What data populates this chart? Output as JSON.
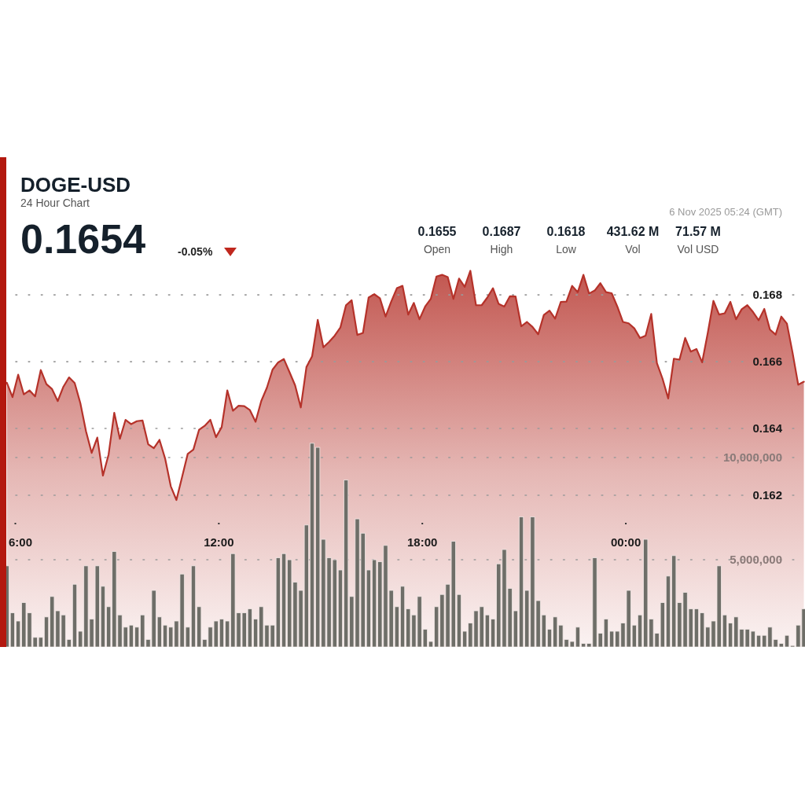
{
  "chart_data": {
    "type": "area",
    "title": "DOGE-USD",
    "subtitle": "24 Hour Chart",
    "annotations": [
      "0.1654",
      "-0.05%",
      "0.1655",
      "Open",
      "0.1687",
      "High",
      "0.1618",
      "Low",
      "431.62 M",
      "Vol",
      "71.57 M",
      "Vol USD",
      "6 Nov 2025 05:24 (GMT)"
    ],
    "x": [
      "2025-11-05T05:45",
      "2025-11-05T05:55",
      "2025-11-05T06:05",
      "2025-11-05T06:15",
      "2025-11-05T06:25",
      "2025-11-05T06:35",
      "2025-11-05T06:45",
      "2025-11-05T06:55",
      "2025-11-05T07:05",
      "2025-11-05T07:15",
      "2025-11-05T07:25",
      "2025-11-05T07:35",
      "2025-11-05T07:45",
      "2025-11-05T07:55",
      "2025-11-05T08:05",
      "2025-11-05T08:15",
      "2025-11-05T08:25",
      "2025-11-05T08:35",
      "2025-11-05T08:45",
      "2025-11-05T08:55",
      "2025-11-05T09:05",
      "2025-11-05T09:15",
      "2025-11-05T09:25",
      "2025-11-05T09:35",
      "2025-11-05T09:45",
      "2025-11-05T09:55",
      "2025-11-05T10:05",
      "2025-11-05T10:15",
      "2025-11-05T10:25",
      "2025-11-05T10:35",
      "2025-11-05T10:45",
      "2025-11-05T10:55",
      "2025-11-05T11:05",
      "2025-11-05T11:15",
      "2025-11-05T11:25",
      "2025-11-05T11:35",
      "2025-11-05T11:45",
      "2025-11-05T11:55",
      "2025-11-05T12:05",
      "2025-11-05T12:15",
      "2025-11-05T12:25",
      "2025-11-05T12:35",
      "2025-11-05T12:45",
      "2025-11-05T12:55",
      "2025-11-05T13:05",
      "2025-11-05T13:15",
      "2025-11-05T13:25",
      "2025-11-05T13:35",
      "2025-11-05T13:45",
      "2025-11-05T13:55",
      "2025-11-05T14:05",
      "2025-11-05T14:15",
      "2025-11-05T14:25",
      "2025-11-05T14:35",
      "2025-11-05T14:45",
      "2025-11-05T14:55",
      "2025-11-05T15:05",
      "2025-11-05T15:15",
      "2025-11-05T15:25",
      "2025-11-05T15:35",
      "2025-11-05T15:45",
      "2025-11-05T15:55",
      "2025-11-05T16:05",
      "2025-11-05T16:15",
      "2025-11-05T16:25",
      "2025-11-05T16:35",
      "2025-11-05T16:45",
      "2025-11-05T16:55",
      "2025-11-05T17:05",
      "2025-11-05T17:15",
      "2025-11-05T17:25",
      "2025-11-05T17:35",
      "2025-11-05T17:45",
      "2025-11-05T17:55",
      "2025-11-05T18:05",
      "2025-11-05T18:15",
      "2025-11-05T18:25",
      "2025-11-05T18:35",
      "2025-11-05T18:45",
      "2025-11-05T18:55",
      "2025-11-05T19:05",
      "2025-11-05T19:15",
      "2025-11-05T19:25",
      "2025-11-05T19:35",
      "2025-11-05T19:45",
      "2025-11-05T19:55",
      "2025-11-05T20:05",
      "2025-11-05T20:15",
      "2025-11-05T20:25",
      "2025-11-05T20:35",
      "2025-11-05T20:45",
      "2025-11-05T20:55",
      "2025-11-05T21:05",
      "2025-11-05T21:15",
      "2025-11-05T21:25",
      "2025-11-05T21:35",
      "2025-11-05T21:45",
      "2025-11-05T21:55",
      "2025-11-05T22:05",
      "2025-11-05T22:15",
      "2025-11-05T22:25",
      "2025-11-05T22:35",
      "2025-11-05T22:45",
      "2025-11-05T22:55",
      "2025-11-05T23:05",
      "2025-11-05T23:15",
      "2025-11-05T23:25",
      "2025-11-05T23:35",
      "2025-11-05T23:45",
      "2025-11-05T23:55",
      "2025-11-06T00:05",
      "2025-11-06T00:15",
      "2025-11-06T00:25",
      "2025-11-06T00:35",
      "2025-11-06T00:45",
      "2025-11-06T00:55",
      "2025-11-06T01:05",
      "2025-11-06T01:15",
      "2025-11-06T01:25",
      "2025-11-06T01:35",
      "2025-11-06T01:45",
      "2025-11-06T01:55",
      "2025-11-06T02:05",
      "2025-11-06T02:15",
      "2025-11-06T02:25",
      "2025-11-06T02:35",
      "2025-11-06T02:45",
      "2025-11-06T02:55",
      "2025-11-06T03:05",
      "2025-11-06T03:15",
      "2025-11-06T03:25",
      "2025-11-06T03:35",
      "2025-11-06T03:45",
      "2025-11-06T03:55",
      "2025-11-06T04:05",
      "2025-11-06T04:15",
      "2025-11-06T04:25",
      "2025-11-06T04:35",
      "2025-11-06T04:45",
      "2025-11-06T04:55",
      "2025-11-06T05:05",
      "2025-11-06T05:15"
    ],
    "xlim": [
      "2025-11-05T05:44",
      "2025-11-06T05:17"
    ],
    "xticks": [
      {
        "value": "2025-11-05T06:00",
        "label": "6:00"
      },
      {
        "value": "2025-11-05T12:00",
        "label": "12:00"
      },
      {
        "value": "2025-11-05T18:00",
        "label": "18:00"
      },
      {
        "value": "2025-11-06T00:00",
        "label": "00:00"
      }
    ],
    "ylim": [
      0.15746,
      0.17212
    ],
    "yticks": [
      0.162,
      0.164,
      0.166,
      0.168
    ],
    "y2lim": [
      730000,
      24700000
    ],
    "y2ticks": [
      {
        "value": 5000000,
        "label": "5,000,000"
      },
      {
        "value": 10000000,
        "label": "10,000,000"
      }
    ],
    "grid": true,
    "marker": "none",
    "line_style": "solid",
    "series": [
      {
        "color": "#b5322a",
        "values": [
          0.16537,
          0.16494,
          0.16561,
          0.16502,
          0.16514,
          0.16496,
          0.16575,
          0.16533,
          0.16518,
          0.16482,
          0.16525,
          0.16553,
          0.16536,
          0.16476,
          0.16392,
          0.16327,
          0.16373,
          0.16259,
          0.16322,
          0.16447,
          0.16369,
          0.16426,
          0.16413,
          0.16422,
          0.16424,
          0.16353,
          0.16341,
          0.16366,
          0.1631,
          0.16227,
          0.16186,
          0.16255,
          0.16324,
          0.16337,
          0.16396,
          0.16408,
          0.16426,
          0.16374,
          0.16404,
          0.16514,
          0.16453,
          0.16468,
          0.16467,
          0.16455,
          0.1642,
          0.16482,
          0.16522,
          0.16576,
          0.16598,
          0.16608,
          0.16569,
          0.16529,
          0.16463,
          0.16584,
          0.16616,
          0.16725,
          0.16643,
          0.16659,
          0.16678,
          0.16702,
          0.16769,
          0.16784,
          0.1668,
          0.16686,
          0.16792,
          0.16802,
          0.1679,
          0.16735,
          0.1678,
          0.1682,
          0.16827,
          0.16741,
          0.16776,
          0.16727,
          0.16765,
          0.16788,
          0.16855,
          0.1686,
          0.16853,
          0.16788,
          0.16849,
          0.16824,
          0.16872,
          0.16769,
          0.16769,
          0.16792,
          0.1682,
          0.16773,
          0.16765,
          0.16796,
          0.16795,
          0.16706,
          0.16719,
          0.16704,
          0.16682,
          0.1674,
          0.16753,
          0.16729,
          0.16779,
          0.1678,
          0.16827,
          0.16808,
          0.1686,
          0.16804,
          0.16813,
          0.16835,
          0.16808,
          0.16805,
          0.16765,
          0.16719,
          0.16715,
          0.167,
          0.16671,
          0.16678,
          0.16743,
          0.16596,
          0.16549,
          0.1649,
          0.16609,
          0.16606,
          0.16671,
          0.1663,
          0.16638,
          0.16598,
          0.16686,
          0.16782,
          0.16741,
          0.16745,
          0.16779,
          0.16727,
          0.16757,
          0.16769,
          0.16749,
          0.16724,
          0.16758,
          0.16696,
          0.16681,
          0.16735,
          0.16714,
          0.16627,
          0.16531,
          0.1654
        ]
      },
      {
        "type": "bar",
        "axis": "y2",
        "color": "#6e6e68",
        "values": [
          4700000,
          2400000,
          2000000,
          2900000,
          2400000,
          1200000,
          1200000,
          2200000,
          3200000,
          2500000,
          2300000,
          1100000,
          3800000,
          1500000,
          4700000,
          2100000,
          4700000,
          3700000,
          2700000,
          5400000,
          2300000,
          1700000,
          1800000,
          1700000,
          2300000,
          1100000,
          3500000,
          2200000,
          1800000,
          1700000,
          2000000,
          4300000,
          1700000,
          4700000,
          2700000,
          1100000,
          1700000,
          2000000,
          2100000,
          2000000,
          5300000,
          2400000,
          2400000,
          2600000,
          2100000,
          2700000,
          1800000,
          1800000,
          5100000,
          5300000,
          5000000,
          3900000,
          3500000,
          6700000,
          10700000,
          10500000,
          6000000,
          5100000,
          5000000,
          4500000,
          8900000,
          3200000,
          7000000,
          6300000,
          4500000,
          5000000,
          4900000,
          5700000,
          3500000,
          2700000,
          3700000,
          2600000,
          2300000,
          3200000,
          1600000,
          1000000,
          2700000,
          3300000,
          3800000,
          5900000,
          3300000,
          1500000,
          1900000,
          2500000,
          2700000,
          2300000,
          2100000,
          4800000,
          5500000,
          3600000,
          2500000,
          7100000,
          3500000,
          7100000,
          3000000,
          2300000,
          1600000,
          2200000,
          1800000,
          1100000,
          1000000,
          1700000,
          900000,
          900000,
          5100000,
          1400000,
          2100000,
          1500000,
          1500000,
          1900000,
          3500000,
          1800000,
          2300000,
          6000000,
          2100000,
          1400000,
          2900000,
          4200000,
          5200000,
          2900000,
          3400000,
          2600000,
          2600000,
          2400000,
          1700000,
          2000000,
          4700000,
          2300000,
          1900000,
          2200000,
          1600000,
          1600000,
          1500000,
          1300000,
          1300000,
          1700000,
          1100000,
          900000,
          1300000,
          800000,
          1800000,
          2600000
        ]
      }
    ]
  }
}
